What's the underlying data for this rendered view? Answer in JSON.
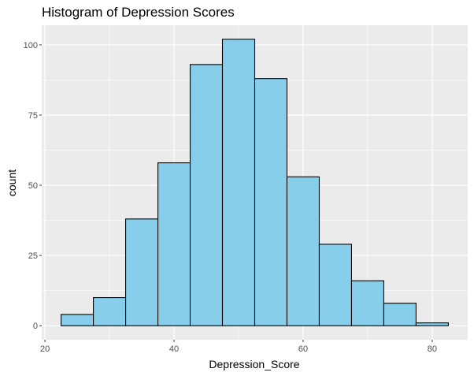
{
  "chart_data": {
    "type": "bar",
    "subtype": "histogram",
    "title": "Histogram of Depression Scores",
    "xlabel": "Depression_Score",
    "ylabel": "count",
    "bin_width": 5,
    "bin_centers": [
      25,
      30,
      35,
      40,
      45,
      50,
      55,
      60,
      65,
      70,
      75,
      80
    ],
    "categories": [
      "22.5-27.5",
      "27.5-32.5",
      "32.5-37.5",
      "37.5-42.5",
      "42.5-47.5",
      "47.5-52.5",
      "52.5-57.5",
      "57.5-62.5",
      "62.5-67.5",
      "67.5-72.5",
      "72.5-77.5",
      "77.5-82.5"
    ],
    "values": [
      4,
      10,
      38,
      58,
      93,
      102,
      88,
      53,
      29,
      16,
      8,
      1
    ],
    "xlim": [
      19.5,
      85.5
    ],
    "ylim": [
      -5,
      107
    ],
    "x_ticks": [
      20,
      40,
      60,
      80
    ],
    "y_ticks": [
      0,
      25,
      50,
      75,
      100
    ],
    "grid": true,
    "legend": null,
    "colors": {
      "fill": "#87CEEB",
      "outline": "#000000",
      "panel": "#EBEBEB",
      "grid": "#FFFFFF"
    }
  }
}
